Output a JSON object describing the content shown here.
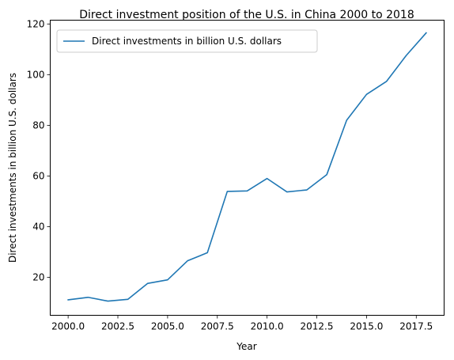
{
  "chart_data": {
    "type": "line",
    "title": "Direct investment position of the U.S. in China 2000 to 2018",
    "xlabel": "Year",
    "ylabel": "Direct investments in billion U.S. dollars",
    "xlim": [
      1999.1,
      2018.9
    ],
    "ylim": [
      5.0,
      121.5
    ],
    "x_ticks": [
      2000.0,
      2002.5,
      2005.0,
      2007.5,
      2010.0,
      2012.5,
      2015.0,
      2017.5
    ],
    "x_tick_labels": [
      "2000.0",
      "2002.5",
      "2005.0",
      "2007.5",
      "2010.0",
      "2012.5",
      "2015.0",
      "2017.5"
    ],
    "y_ticks": [
      20,
      40,
      60,
      80,
      100,
      120
    ],
    "y_tick_labels": [
      "20",
      "40",
      "60",
      "80",
      "100",
      "120"
    ],
    "grid": false,
    "legend_position": "top-left",
    "series": [
      {
        "name": "Direct investments in billion U.S. dollars",
        "color": "#1f77b4",
        "x": [
          2000,
          2001,
          2002,
          2003,
          2004,
          2005,
          2006,
          2007,
          2008,
          2009,
          2010,
          2011,
          2012,
          2013,
          2014,
          2015,
          2016,
          2017,
          2018
        ],
        "y": [
          11.1,
          12.1,
          10.6,
          11.3,
          17.6,
          19.0,
          26.5,
          29.7,
          53.9,
          54.1,
          59.0,
          53.7,
          54.5,
          60.5,
          82.0,
          92.2,
          97.3,
          107.6,
          116.5
        ]
      }
    ]
  }
}
